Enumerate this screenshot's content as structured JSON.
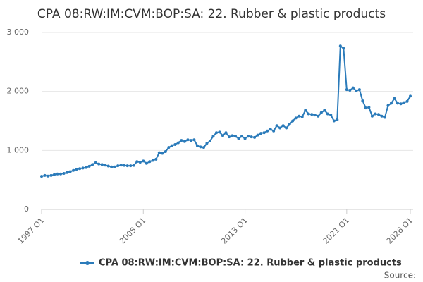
{
  "chart_data": {
    "type": "line",
    "title": "CPA 08:RW:IM:CVM:BOP:SA: 22. Rubber & plastic products",
    "source": "Source:",
    "categories": [
      "1997 Q1",
      null,
      null,
      null,
      null,
      null,
      null,
      null,
      null,
      null,
      null,
      null,
      null,
      null,
      null,
      null,
      null,
      null,
      null,
      null,
      null,
      null,
      null,
      null,
      null,
      null,
      null,
      null,
      null,
      null,
      null,
      null,
      "2005 Q1",
      null,
      null,
      null,
      null,
      null,
      null,
      null,
      null,
      null,
      null,
      null,
      null,
      null,
      null,
      null,
      null,
      null,
      null,
      null,
      null,
      null,
      null,
      null,
      null,
      null,
      null,
      null,
      null,
      null,
      null,
      null,
      "2013 Q1",
      null,
      null,
      null,
      null,
      null,
      null,
      null,
      null,
      null,
      null,
      null,
      null,
      null,
      null,
      null,
      null,
      null,
      null,
      null,
      null,
      null,
      null,
      null,
      null,
      null,
      null,
      null,
      null,
      null,
      null,
      null,
      "2021 Q1",
      null,
      null,
      null,
      null,
      null,
      null,
      null,
      null,
      null,
      null,
      null,
      null,
      null,
      null,
      null,
      null,
      null,
      null,
      null,
      "2026 Q1"
    ],
    "series": [
      {
        "name": "CPA 08:RW:IM:CVM:BOP:SA: 22. Rubber & plastic products",
        "color": "#2b7bba",
        "values": [
          560,
          575,
          565,
          575,
          590,
          600,
          600,
          610,
          625,
          640,
          660,
          680,
          690,
          700,
          710,
          730,
          760,
          790,
          770,
          760,
          750,
          735,
          720,
          720,
          740,
          750,
          745,
          740,
          740,
          745,
          810,
          800,
          820,
          780,
          810,
          830,
          850,
          960,
          950,
          980,
          1050,
          1080,
          1100,
          1130,
          1170,
          1150,
          1180,
          1170,
          1180,
          1080,
          1060,
          1050,
          1120,
          1160,
          1240,
          1300,
          1310,
          1250,
          1300,
          1230,
          1250,
          1240,
          1200,
          1240,
          1200,
          1240,
          1230,
          1220,
          1260,
          1290,
          1300,
          1330,
          1360,
          1330,
          1420,
          1380,
          1420,
          1380,
          1440,
          1500,
          1550,
          1580,
          1570,
          1680,
          1620,
          1610,
          1600,
          1580,
          1640,
          1680,
          1620,
          1600,
          1500,
          1520,
          2770,
          2730,
          2030,
          2020,
          2060,
          2010,
          2030,
          1840,
          1720,
          1730,
          1580,
          1620,
          1610,
          1580,
          1560,
          1760,
          1800,
          1880,
          1800,
          1790,
          1810,
          1830,
          1920
        ]
      }
    ],
    "ylim": [
      0,
      3000
    ],
    "yticks": [
      0,
      {
        "value": 1000,
        "label": "1 000"
      },
      {
        "value": 2000,
        "label": "2 000"
      },
      {
        "value": 3000,
        "label": "3 000"
      }
    ],
    "grid": true
  }
}
